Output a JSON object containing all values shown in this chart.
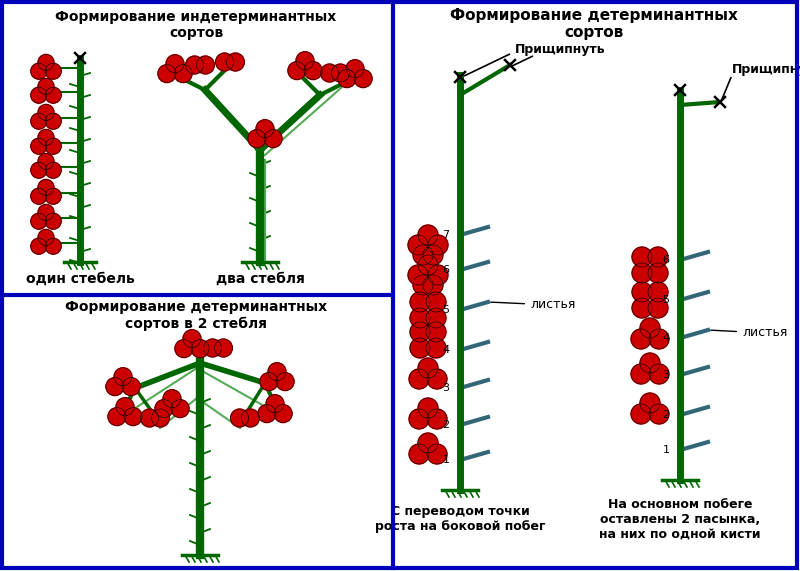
{
  "bg_color": "#ffffff",
  "title_indeterminate": "Формирование индетерминантных\nсортов",
  "title_determinate_top": "Формирование детерминантных\nсортов",
  "title_determinate_2stem": "Формирование детерминантных\nсортов в 2 стебля",
  "label_one_stem": "один стебель",
  "label_two_stems": "два стебля",
  "label_prishchipnut": "Прищипнуть",
  "label_listya": "листья",
  "label_caption1": "С переводом точки\nроста на боковой побег",
  "label_caption2": "На основном побеге\nоставлены 2 пасынка,\nна них по одной кисти",
  "stem_color": "#006600",
  "fruit_color": "#cc0000",
  "leaf_color": "#336677",
  "border_color": "#0000bb",
  "text_color": "#000000"
}
